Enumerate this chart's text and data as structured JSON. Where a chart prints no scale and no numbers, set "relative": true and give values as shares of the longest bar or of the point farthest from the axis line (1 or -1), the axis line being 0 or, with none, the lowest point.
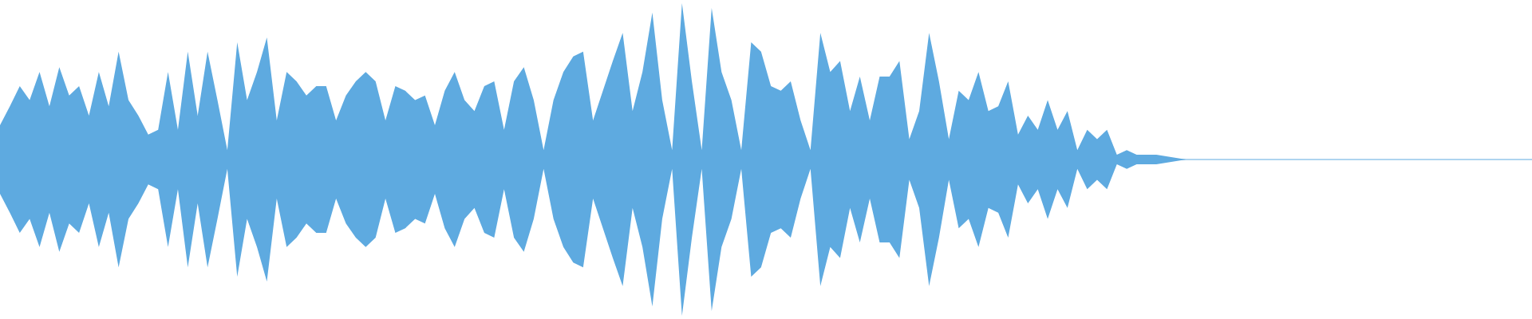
{
  "chart_data": {
    "type": "area",
    "relative": true,
    "tick_labels": false,
    "ref_lines": [
      {
        "axis": "y",
        "value": 0,
        "color": "#5eaae0"
      }
    ],
    "categories": [
      null,
      null,
      null,
      null,
      null,
      null,
      null,
      null,
      null,
      null,
      null,
      null,
      null,
      null,
      null,
      null,
      null,
      null,
      null,
      null,
      null,
      null,
      null,
      null,
      null,
      null,
      null,
      null,
      null,
      null,
      null,
      null,
      null,
      null,
      null,
      null,
      null,
      null,
      null,
      null,
      null,
      null,
      null,
      null,
      null,
      null,
      null,
      null,
      null,
      null,
      null,
      null,
      null,
      null,
      null,
      null,
      null,
      null,
      null,
      null,
      null,
      null,
      null,
      null,
      null,
      null,
      null,
      null,
      null,
      null,
      null,
      null,
      null,
      null,
      null,
      null,
      null,
      null,
      null,
      null,
      null,
      null,
      null,
      null,
      null,
      null,
      null,
      null,
      null,
      null,
      null,
      null,
      null,
      null,
      null,
      null,
      null,
      null,
      null,
      null,
      null,
      null,
      null,
      null,
      null,
      null,
      null,
      null,
      null,
      null,
      null,
      null,
      null,
      null,
      null,
      null,
      null,
      null,
      null,
      null,
      null,
      null,
      null,
      null,
      null,
      null,
      null,
      null,
      null,
      null,
      null,
      null,
      null,
      null,
      null,
      null,
      null,
      null,
      null,
      null,
      null,
      null,
      null,
      null,
      null,
      null,
      null,
      null,
      null,
      null,
      null,
      null,
      null,
      null,
      null,
      null
    ],
    "series": [
      {
        "color": "#5eaae0",
        "values": [
          0.22,
          0.34,
          0.47,
          0.38,
          0.56,
          0.34,
          0.59,
          0.41,
          0.47,
          0.28,
          0.56,
          0.34,
          0.69,
          0.38,
          0.28,
          0.16,
          0.19,
          0.56,
          0.19,
          0.69,
          0.28,
          0.69,
          0.38,
          0.06,
          0.75,
          0.38,
          0.56,
          0.78,
          0.25,
          0.56,
          0.5,
          0.41,
          0.47,
          0.47,
          0.25,
          0.41,
          0.5,
          0.56,
          0.5,
          0.25,
          0.47,
          0.44,
          0.38,
          0.41,
          0.22,
          0.44,
          0.56,
          0.38,
          0.31,
          0.47,
          0.5,
          0.19,
          0.5,
          0.59,
          0.38,
          0.06,
          0.38,
          0.56,
          0.66,
          0.69,
          0.25,
          0.44,
          0.63,
          0.81,
          0.31,
          0.56,
          0.94,
          0.38,
          0.06,
          1,
          0.5,
          0.06,
          0.97,
          0.56,
          0.38,
          0.06,
          0.75,
          0.69,
          0.47,
          0.44,
          0.5,
          0.25,
          0.06,
          0.81,
          0.56,
          0.63,
          0.31,
          0.53,
          0.25,
          0.53,
          0.53,
          0.63,
          0.13,
          0.31,
          0.81,
          0.5,
          0.13,
          0.44,
          0.38,
          0.56,
          0.31,
          0.34,
          0.5,
          0.16,
          0.28,
          0.19,
          0.38,
          0.19,
          0.31,
          0.06,
          0.19,
          0.13,
          0.19,
          0.03,
          0.06,
          0.03,
          0.03,
          0.03,
          0.02,
          0.01,
          0,
          0,
          0,
          0,
          0,
          0,
          0,
          0,
          0,
          0,
          0,
          0,
          0,
          0,
          0,
          0,
          0,
          0,
          0,
          0,
          0,
          0,
          0,
          0,
          0,
          0,
          0,
          0,
          0,
          0,
          0,
          0,
          0,
          0,
          0,
          0
        ]
      },
      {
        "color": "#5eaae0",
        "values": [
          -0.22,
          -0.34,
          -0.47,
          -0.38,
          -0.56,
          -0.34,
          -0.59,
          -0.41,
          -0.47,
          -0.28,
          -0.56,
          -0.34,
          -0.69,
          -0.38,
          -0.28,
          -0.16,
          -0.19,
          -0.56,
          -0.19,
          -0.69,
          -0.28,
          -0.69,
          -0.38,
          -0.06,
          -0.75,
          -0.38,
          -0.56,
          -0.78,
          -0.25,
          -0.56,
          -0.5,
          -0.41,
          -0.47,
          -0.47,
          -0.25,
          -0.41,
          -0.5,
          -0.56,
          -0.5,
          -0.25,
          -0.47,
          -0.44,
          -0.38,
          -0.41,
          -0.22,
          -0.44,
          -0.56,
          -0.38,
          -0.31,
          -0.47,
          -0.5,
          -0.19,
          -0.5,
          -0.59,
          -0.38,
          -0.06,
          -0.38,
          -0.56,
          -0.66,
          -0.69,
          -0.25,
          -0.44,
          -0.63,
          -0.81,
          -0.31,
          -0.56,
          -0.94,
          -0.38,
          -0.06,
          -1,
          -0.5,
          -0.06,
          -0.97,
          -0.56,
          -0.38,
          -0.06,
          -0.75,
          -0.69,
          -0.47,
          -0.44,
          -0.5,
          -0.25,
          -0.06,
          -0.81,
          -0.56,
          -0.63,
          -0.31,
          -0.53,
          -0.25,
          -0.53,
          -0.53,
          -0.63,
          -0.13,
          -0.31,
          -0.81,
          -0.5,
          -0.13,
          -0.44,
          -0.38,
          -0.56,
          -0.31,
          -0.34,
          -0.5,
          -0.16,
          -0.28,
          -0.19,
          -0.38,
          -0.19,
          -0.31,
          -0.06,
          -0.19,
          -0.13,
          -0.19,
          -0.03,
          -0.06,
          -0.03,
          -0.03,
          -0.03,
          -0.02,
          -0.01,
          0,
          0,
          0,
          0,
          0,
          0,
          0,
          0,
          0,
          0,
          0,
          0,
          0,
          0,
          0,
          0,
          0,
          0,
          0,
          0,
          0,
          0,
          0,
          0,
          0,
          0,
          0,
          0,
          0,
          0,
          0,
          0,
          0,
          0,
          0,
          0
        ]
      }
    ]
  }
}
